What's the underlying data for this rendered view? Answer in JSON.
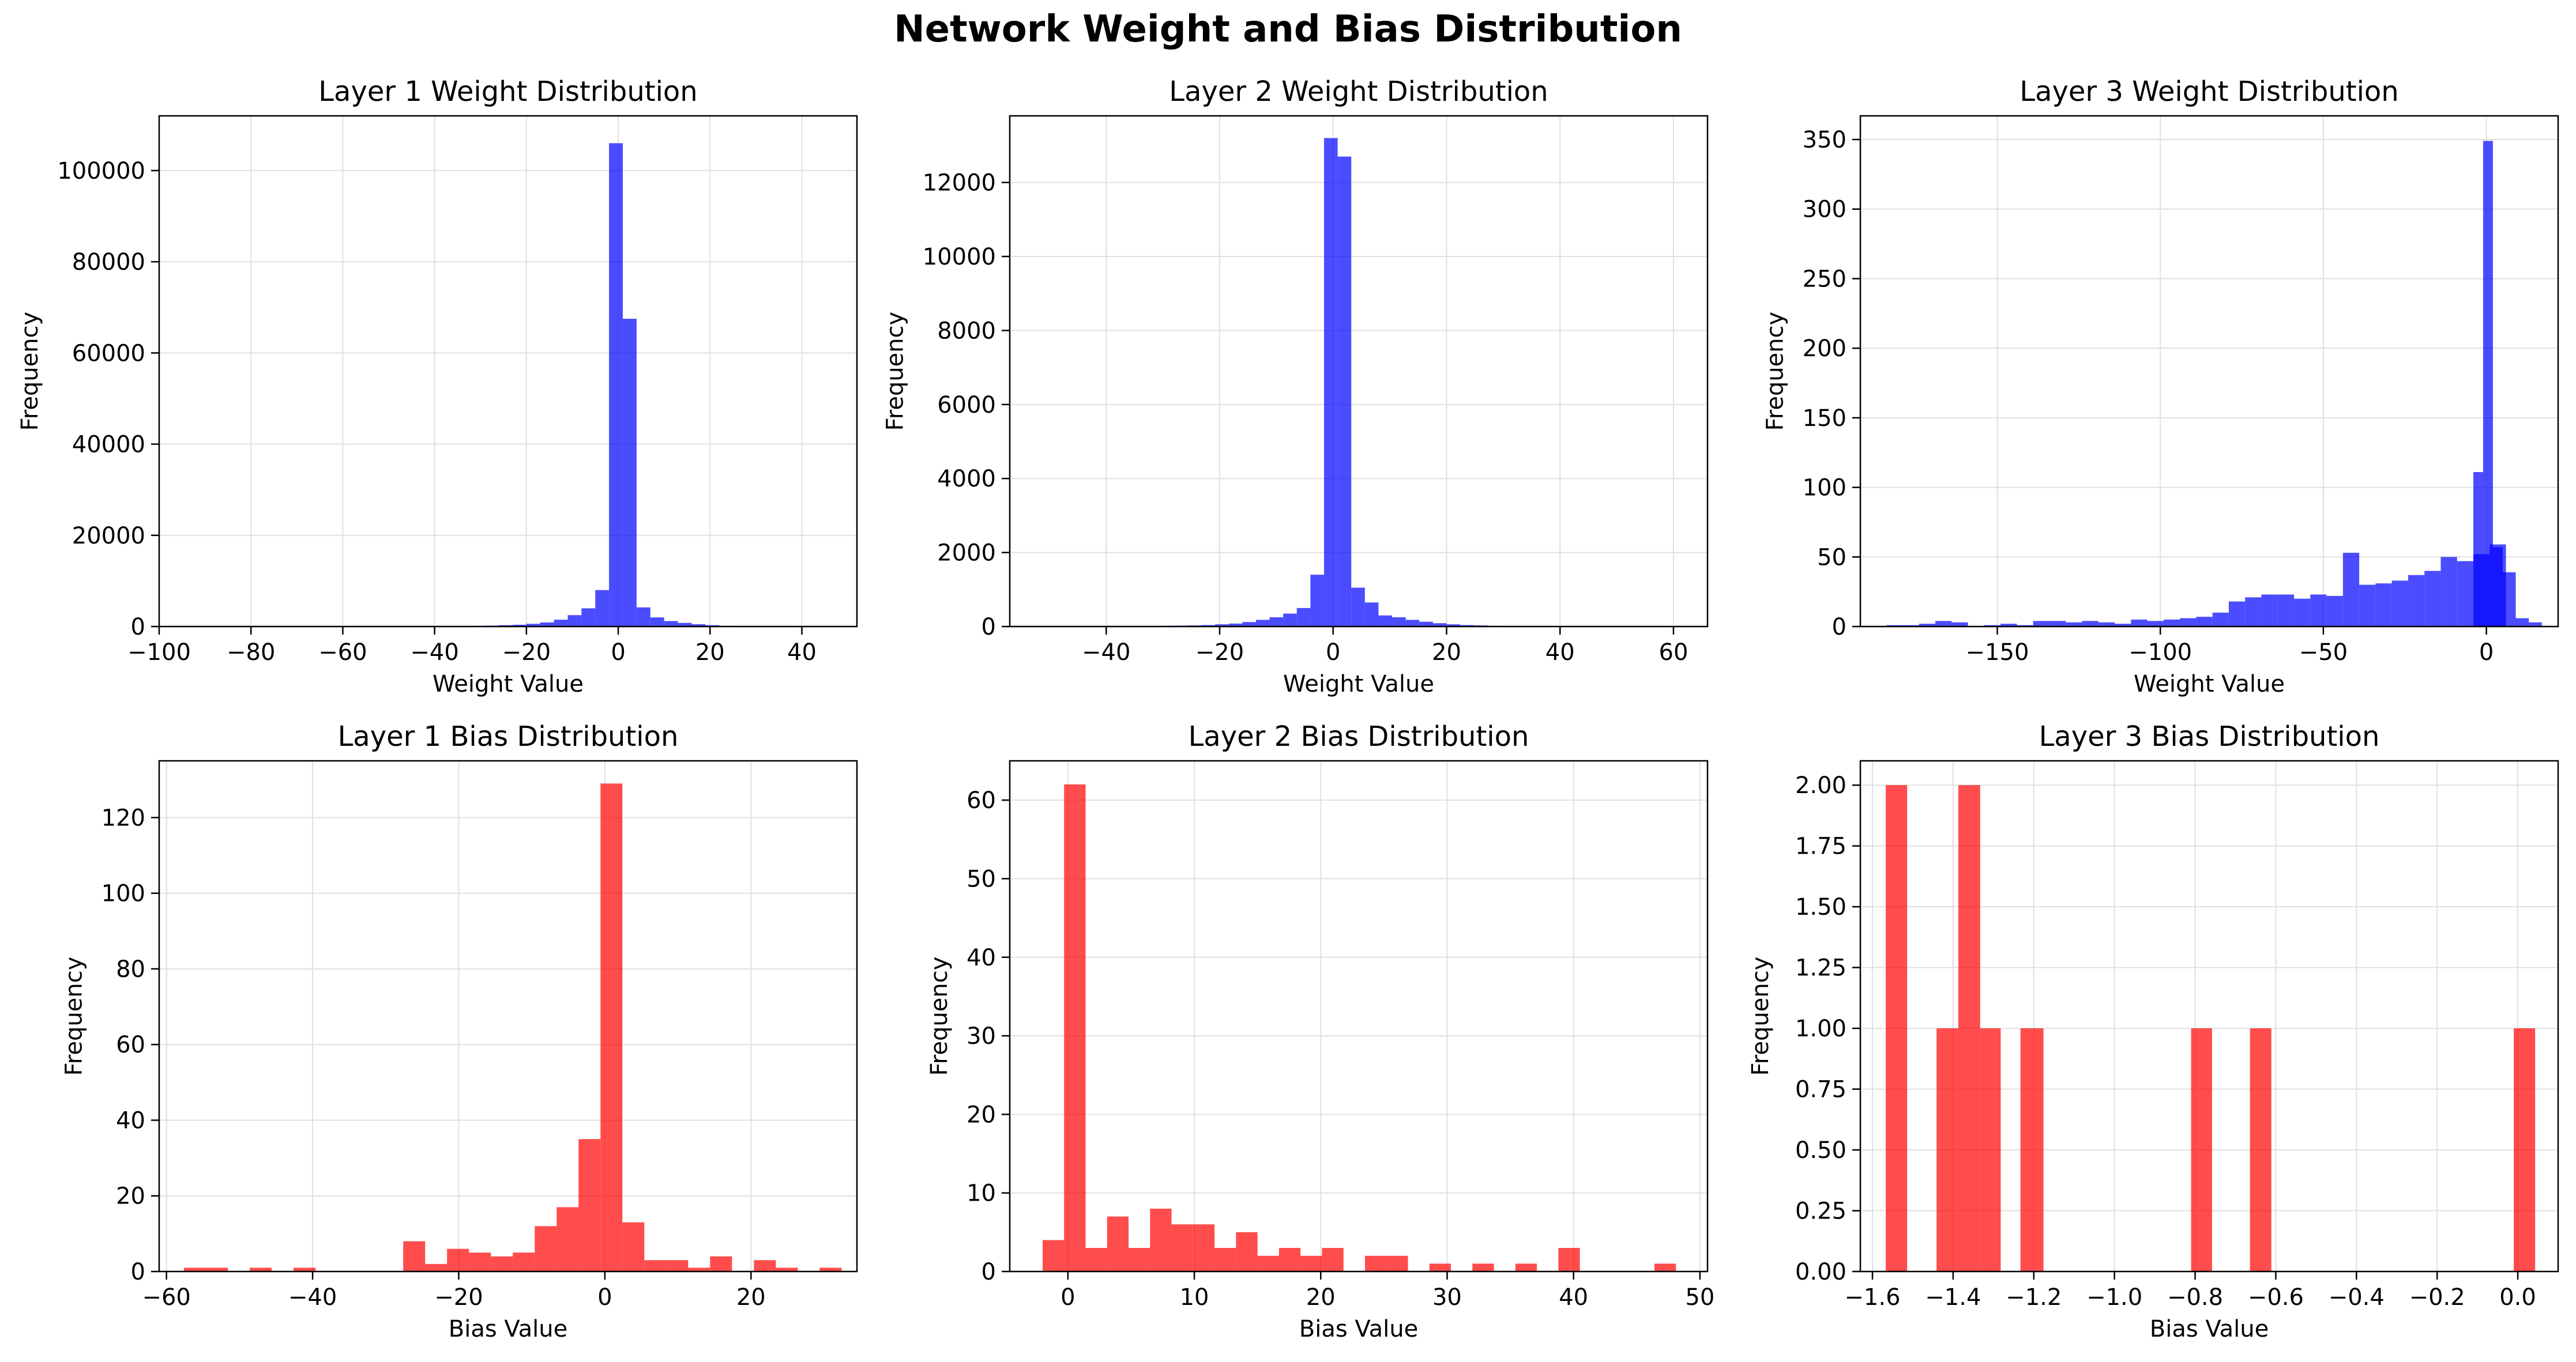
{
  "figure": {
    "title": "Network Weight and Bias Distribution"
  },
  "colors": {
    "weight": "#0000ff",
    "bias": "#ff0000",
    "grid": "#e0e0e0",
    "axis": "#000000"
  },
  "chart_data": [
    {
      "type": "bar",
      "title": "Layer 1 Weight Distribution",
      "xlabel": "Weight Value",
      "ylabel": "Frequency",
      "xlim": [
        -100,
        52
      ],
      "ylim": [
        0,
        112000
      ],
      "xticks": [
        -100,
        -80,
        -60,
        -40,
        -20,
        0,
        20,
        40
      ],
      "yticks": [
        0,
        20000,
        40000,
        60000,
        80000,
        100000
      ],
      "grid": true,
      "color": "weight",
      "bins": [
        [
          -98,
          -95,
          30
        ],
        [
          -95,
          -92,
          30
        ],
        [
          -92,
          -89,
          30
        ],
        [
          -89,
          -86,
          30
        ],
        [
          -86,
          -83,
          30
        ],
        [
          -83,
          -80,
          30
        ],
        [
          -80,
          -77,
          30
        ],
        [
          -77,
          -74,
          30
        ],
        [
          -74,
          -71,
          30
        ],
        [
          -71,
          -68,
          30
        ],
        [
          -68,
          -65,
          30
        ],
        [
          -65,
          -62,
          30
        ],
        [
          -62,
          -59,
          30
        ],
        [
          -59,
          -56,
          30
        ],
        [
          -56,
          -53,
          30
        ],
        [
          -53,
          -50,
          30
        ],
        [
          -50,
          -47,
          40
        ],
        [
          -47,
          -44,
          40
        ],
        [
          -44,
          -41,
          50
        ],
        [
          -41,
          -38,
          60
        ],
        [
          -38,
          -35,
          80
        ],
        [
          -35,
          -32,
          100
        ],
        [
          -32,
          -29,
          150
        ],
        [
          -29,
          -26,
          200
        ],
        [
          -26,
          -23,
          300
        ],
        [
          -23,
          -20,
          400
        ],
        [
          -20,
          -17,
          600
        ],
        [
          -17,
          -14,
          900
        ],
        [
          -14,
          -11,
          1500
        ],
        [
          -11,
          -8,
          2500
        ],
        [
          -8,
          -5,
          4000
        ],
        [
          -5,
          -2,
          8000
        ],
        [
          -2,
          1,
          106000
        ],
        [
          1,
          4,
          67500
        ],
        [
          4,
          7,
          4200
        ],
        [
          7,
          10,
          2000
        ],
        [
          10,
          13,
          1200
        ],
        [
          13,
          16,
          800
        ],
        [
          16,
          19,
          500
        ],
        [
          19,
          22,
          300
        ],
        [
          22,
          25,
          150
        ],
        [
          25,
          28,
          100
        ],
        [
          28,
          31,
          60
        ],
        [
          31,
          34,
          40
        ],
        [
          34,
          37,
          30
        ],
        [
          37,
          40,
          20
        ],
        [
          40,
          43,
          20
        ],
        [
          43,
          46,
          10
        ],
        [
          46,
          49,
          10
        ]
      ]
    },
    {
      "type": "bar",
      "title": "Layer 2 Weight Distribution",
      "xlabel": "Weight Value",
      "ylabel": "Frequency",
      "xlim": [
        -57,
        66
      ],
      "ylim": [
        0,
        13800
      ],
      "xticks": [
        -40,
        -20,
        0,
        20,
        40,
        60
      ],
      "yticks": [
        0,
        2000,
        4000,
        6000,
        8000,
        10000,
        12000
      ],
      "grid": true,
      "color": "weight",
      "bins": [
        [
          -52,
          -49.6,
          5
        ],
        [
          -49.6,
          -47.2,
          5
        ],
        [
          -47.2,
          -44.8,
          5
        ],
        [
          -44.8,
          -42.4,
          5
        ],
        [
          -42.4,
          -40,
          5
        ],
        [
          -40,
          -37.6,
          8
        ],
        [
          -37.6,
          -35.2,
          10
        ],
        [
          -35.2,
          -32.8,
          12
        ],
        [
          -32.8,
          -30.4,
          15
        ],
        [
          -30.4,
          -28,
          20
        ],
        [
          -28,
          -25.6,
          25
        ],
        [
          -25.6,
          -23.2,
          30
        ],
        [
          -23.2,
          -20.8,
          40
        ],
        [
          -20.8,
          -18.4,
          60
        ],
        [
          -18.4,
          -16,
          80
        ],
        [
          -16,
          -13.6,
          120
        ],
        [
          -13.6,
          -11.2,
          180
        ],
        [
          -11.2,
          -8.8,
          250
        ],
        [
          -8.8,
          -6.4,
          350
        ],
        [
          -6.4,
          -4,
          500
        ],
        [
          -4,
          -1.6,
          1400
        ],
        [
          -1.6,
          0.8,
          13200
        ],
        [
          0.8,
          3.2,
          12700
        ],
        [
          3.2,
          5.6,
          1050
        ],
        [
          5.6,
          8,
          650
        ],
        [
          8,
          10.4,
          300
        ],
        [
          10.4,
          12.8,
          250
        ],
        [
          12.8,
          15.2,
          180
        ],
        [
          15.2,
          17.6,
          130
        ],
        [
          17.6,
          20,
          90
        ],
        [
          20,
          22.4,
          60
        ],
        [
          22.4,
          24.8,
          40
        ],
        [
          24.8,
          27.2,
          30
        ],
        [
          27.2,
          29.6,
          20
        ],
        [
          29.6,
          32,
          15
        ],
        [
          32,
          34.4,
          10
        ],
        [
          34.4,
          36.8,
          8
        ],
        [
          36.8,
          39.2,
          5
        ],
        [
          39.2,
          41.6,
          5
        ],
        [
          41.6,
          44,
          5
        ],
        [
          44,
          46.4,
          4
        ],
        [
          46.4,
          48.8,
          3
        ],
        [
          48.8,
          51.2,
          3
        ],
        [
          51.2,
          53.6,
          2
        ],
        [
          53.6,
          56,
          2
        ],
        [
          56,
          58.4,
          2
        ],
        [
          58.4,
          60.8,
          2
        ]
      ]
    },
    {
      "type": "bar",
      "title": "Layer 3 Weight Distribution",
      "xlabel": "Weight Value",
      "ylabel": "Frequency",
      "xlim": [
        -192,
        22
      ],
      "ylim": [
        0,
        367
      ],
      "xticks": [
        -150,
        -100,
        -50,
        0
      ],
      "yticks": [
        0,
        50,
        100,
        150,
        200,
        250,
        300,
        350
      ],
      "grid": true,
      "color": "weight",
      "bins": [
        [
          -184,
          -179,
          1
        ],
        [
          -179,
          -174,
          1
        ],
        [
          -174,
          -169,
          2
        ],
        [
          -169,
          -164,
          4
        ],
        [
          -164,
          -159,
          3
        ],
        [
          -159,
          -154,
          0
        ],
        [
          -154,
          -149,
          1
        ],
        [
          -149,
          -144,
          2
        ],
        [
          -144,
          -139,
          1
        ],
        [
          -139,
          -134,
          4
        ],
        [
          -134,
          -129,
          4
        ],
        [
          -129,
          -124,
          3
        ],
        [
          -124,
          -119,
          4
        ],
        [
          -119,
          -114,
          3
        ],
        [
          -114,
          -109,
          2
        ],
        [
          -109,
          -104,
          5
        ],
        [
          -104,
          -99,
          4
        ],
        [
          -99,
          -94,
          5
        ],
        [
          -94,
          -89,
          6
        ],
        [
          -89,
          -84,
          7
        ],
        [
          -84,
          -79,
          10
        ],
        [
          -79,
          -74,
          18
        ],
        [
          -74,
          -69,
          21
        ],
        [
          -69,
          -64,
          23
        ],
        [
          -64,
          -59,
          23
        ],
        [
          -59,
          -54,
          20
        ],
        [
          -54,
          -49,
          23
        ],
        [
          -49,
          -44,
          22
        ],
        [
          -44,
          -39,
          53
        ],
        [
          -39,
          -34,
          30
        ],
        [
          -34,
          -29,
          31
        ],
        [
          -29,
          -24,
          33
        ],
        [
          -24,
          -19,
          37
        ],
        [
          -19,
          -14,
          40
        ],
        [
          -14,
          -9,
          50
        ],
        [
          -9,
          -4,
          47
        ],
        [
          -4,
          1,
          52
        ],
        [
          1,
          6,
          59
        ],
        [
          -4,
          -1,
          111
        ],
        [
          -1,
          2,
          349
        ],
        [
          2,
          5,
          57
        ],
        [
          5,
          9,
          39
        ],
        [
          9,
          13,
          6
        ],
        [
          13,
          17,
          3
        ]
      ]
    },
    {
      "type": "bar",
      "title": "Layer 1 Bias Distribution",
      "xlabel": "Bias Value",
      "ylabel": "Frequency",
      "xlim": [
        -61,
        34.5
      ],
      "ylim": [
        0,
        135
      ],
      "xticks": [
        -60,
        -40,
        -20,
        0,
        20
      ],
      "yticks": [
        0,
        20,
        40,
        60,
        80,
        100,
        120
      ],
      "grid": true,
      "color": "bias",
      "bins": [
        [
          -57.6,
          -54.6,
          1
        ],
        [
          -54.6,
          -51.6,
          1
        ],
        [
          -48.6,
          -45.6,
          1
        ],
        [
          -42.6,
          -39.6,
          1
        ],
        [
          -27.6,
          -24.6,
          8
        ],
        [
          -24.6,
          -21.6,
          2
        ],
        [
          -21.6,
          -18.6,
          6
        ],
        [
          -18.6,
          -15.6,
          5
        ],
        [
          -15.6,
          -12.6,
          4
        ],
        [
          -12.6,
          -9.6,
          5
        ],
        [
          -9.6,
          -6.6,
          12
        ],
        [
          -6.6,
          -3.6,
          17
        ],
        [
          -3.6,
          -0.6,
          35
        ],
        [
          -0.6,
          2.4,
          129
        ],
        [
          2.4,
          5.4,
          13
        ],
        [
          5.4,
          8.4,
          3
        ],
        [
          8.4,
          11.4,
          3
        ],
        [
          11.4,
          14.4,
          1
        ],
        [
          14.4,
          17.4,
          4
        ],
        [
          17.4,
          20.4,
          0
        ],
        [
          20.4,
          23.4,
          3
        ],
        [
          23.4,
          26.4,
          1
        ],
        [
          26.4,
          29.4,
          0
        ],
        [
          29.4,
          32.4,
          1
        ]
      ]
    },
    {
      "type": "bar",
      "title": "Layer 2 Bias Distribution",
      "xlabel": "Bias Value",
      "ylabel": "Frequency",
      "xlim": [
        -4.6,
        50.6
      ],
      "ylim": [
        0,
        65
      ],
      "xticks": [
        0,
        10,
        20,
        30,
        40,
        50
      ],
      "yticks": [
        0,
        10,
        20,
        30,
        40,
        50,
        60
      ],
      "grid": true,
      "color": "bias",
      "bins": [
        [
          -2,
          -0.3,
          4
        ],
        [
          -0.3,
          1.4,
          62
        ],
        [
          1.4,
          3.1,
          3
        ],
        [
          3.1,
          4.8,
          7
        ],
        [
          4.8,
          6.5,
          3
        ],
        [
          6.5,
          8.2,
          8
        ],
        [
          8.2,
          9.9,
          6
        ],
        [
          9.9,
          11.6,
          6
        ],
        [
          11.6,
          13.3,
          3
        ],
        [
          13.3,
          15,
          5
        ],
        [
          15,
          16.7,
          2
        ],
        [
          16.7,
          18.4,
          3
        ],
        [
          18.4,
          20.1,
          2
        ],
        [
          20.1,
          21.8,
          3
        ],
        [
          23.5,
          25.2,
          2
        ],
        [
          25.2,
          26.9,
          2
        ],
        [
          28.6,
          30.3,
          1
        ],
        [
          32,
          33.7,
          1
        ],
        [
          35.4,
          37.1,
          1
        ],
        [
          38.8,
          40.5,
          3
        ],
        [
          46.4,
          48.1,
          1
        ]
      ]
    },
    {
      "type": "bar",
      "title": "Layer 3 Bias Distribution",
      "xlabel": "Bias Value",
      "ylabel": "Frequency",
      "xlim": [
        -1.63,
        0.1
      ],
      "ylim": [
        0,
        2.1
      ],
      "xticks": [
        -1.6,
        -1.4,
        -1.2,
        -1.0,
        -0.8,
        -0.6,
        -0.4,
        -0.2,
        0.0
      ],
      "yticks": [
        0.0,
        0.25,
        0.5,
        0.75,
        1.0,
        1.25,
        1.5,
        1.75,
        2.0
      ],
      "yticklabels": [
        "0.00",
        "0.25",
        "0.50",
        "0.75",
        "1.00",
        "1.25",
        "1.50",
        "1.75",
        "2.00"
      ],
      "xticklabels": [
        "−1.6",
        "−1.4",
        "−1.2",
        "−1.0",
        "−0.8",
        "−0.6",
        "−0.4",
        "−0.2",
        "0.0"
      ],
      "grid": true,
      "color": "bias",
      "bins": [
        [
          -1.567,
          -1.514,
          2
        ],
        [
          -1.441,
          -1.387,
          1
        ],
        [
          -1.387,
          -1.333,
          2
        ],
        [
          -1.333,
          -1.282,
          1
        ],
        [
          -1.233,
          -1.176,
          1
        ],
        [
          -0.81,
          -0.758,
          1
        ],
        [
          -0.664,
          -0.611,
          1
        ],
        [
          -0.01,
          0.043,
          1
        ]
      ]
    }
  ]
}
